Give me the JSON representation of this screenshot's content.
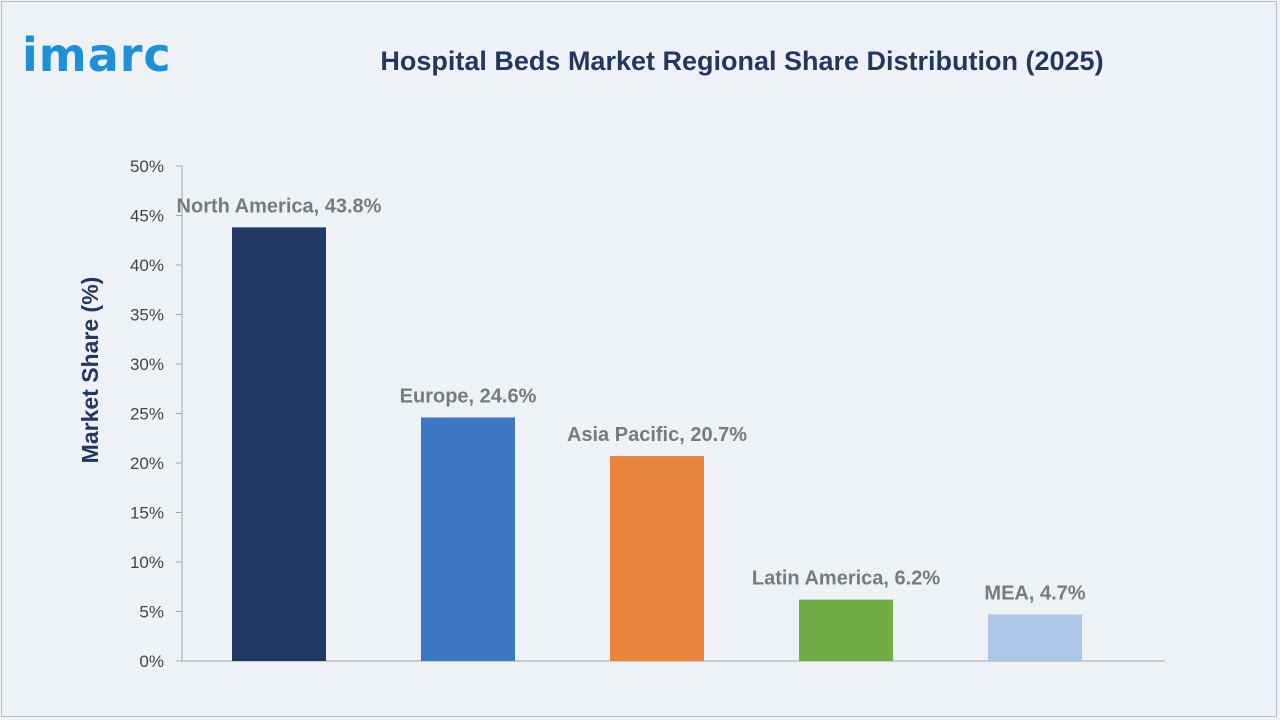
{
  "brand": {
    "logo_text": "imarc",
    "logo_color": "#1f8fd8"
  },
  "chart_data": {
    "type": "bar",
    "title": "Hospital Beds Market Regional Share Distribution (2025)",
    "ylabel": "Market Share (%)",
    "xlabel": "",
    "ylim": [
      0,
      50
    ],
    "yticks": [
      0,
      5,
      10,
      15,
      20,
      25,
      30,
      35,
      40,
      45,
      50
    ],
    "ytick_labels": [
      "0%",
      "5%",
      "10%",
      "15%",
      "20%",
      "25%",
      "30%",
      "35%",
      "40%",
      "45%",
      "50%"
    ],
    "grid": false,
    "legend": "none",
    "categories": [
      "North America",
      "Europe",
      "Asia Pacific",
      "Latin America",
      "MEA"
    ],
    "values": [
      43.8,
      24.6,
      20.7,
      6.2,
      4.7
    ],
    "data_labels": [
      "North America, 43.8%",
      "Europe, 24.6%",
      "Asia Pacific, 20.7%",
      "Latin America, 6.2%",
      "MEA, 4.7%"
    ],
    "colors": [
      "#1f3864",
      "#3d76c1",
      "#e8843b",
      "#71ad47",
      "#aec6e6"
    ]
  }
}
